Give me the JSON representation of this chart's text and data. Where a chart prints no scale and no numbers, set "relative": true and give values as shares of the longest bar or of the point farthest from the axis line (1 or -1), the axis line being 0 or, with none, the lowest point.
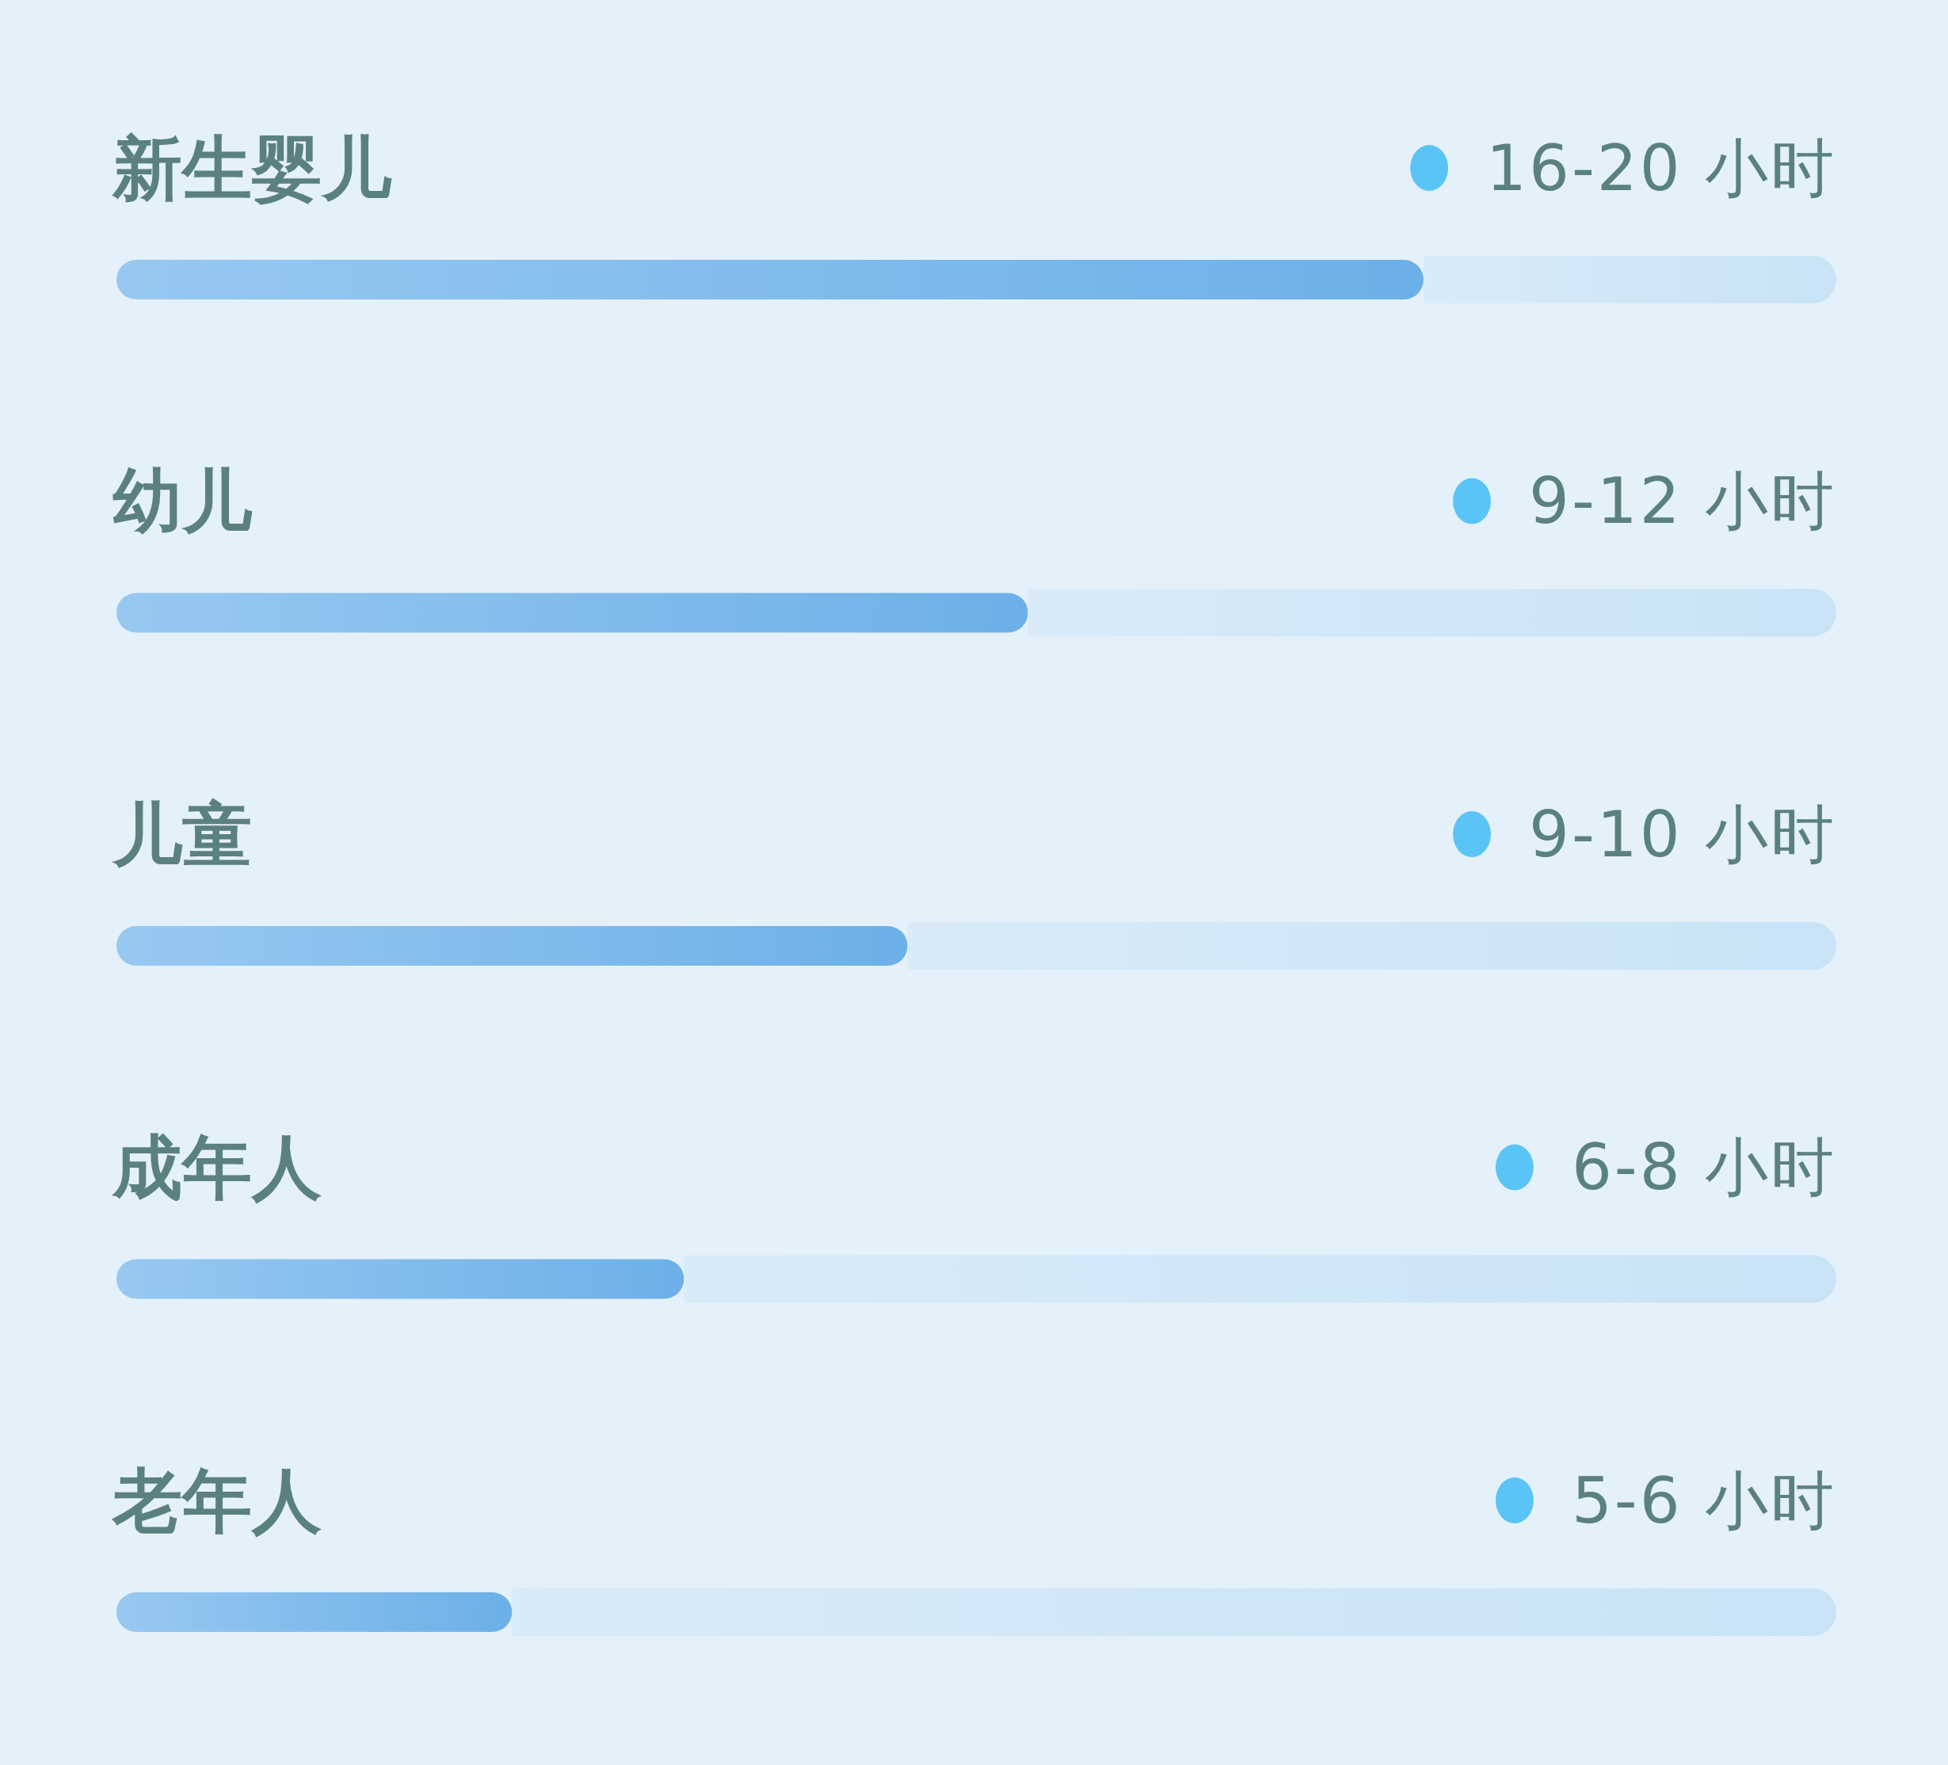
{
  "chart_data": {
    "type": "bar",
    "orientation": "horizontal",
    "relative": true,
    "stacked": true,
    "categories": [
      "新生婴儿",
      "幼儿",
      "儿童",
      "成年人",
      "老年人"
    ],
    "series": [
      {
        "color": "#6cb0e9",
        "values": [
          0.76,
          0.53,
          0.46,
          0.33,
          0.23
        ]
      },
      {
        "color": "#c8e3f6",
        "values": [
          0.24,
          0.47,
          0.54,
          0.67,
          0.77
        ]
      }
    ],
    "value_labels": [
      "16-20 小时",
      "9-12 小时",
      "9-10 小时",
      "6-8 小时",
      "5-6 小时"
    ]
  }
}
